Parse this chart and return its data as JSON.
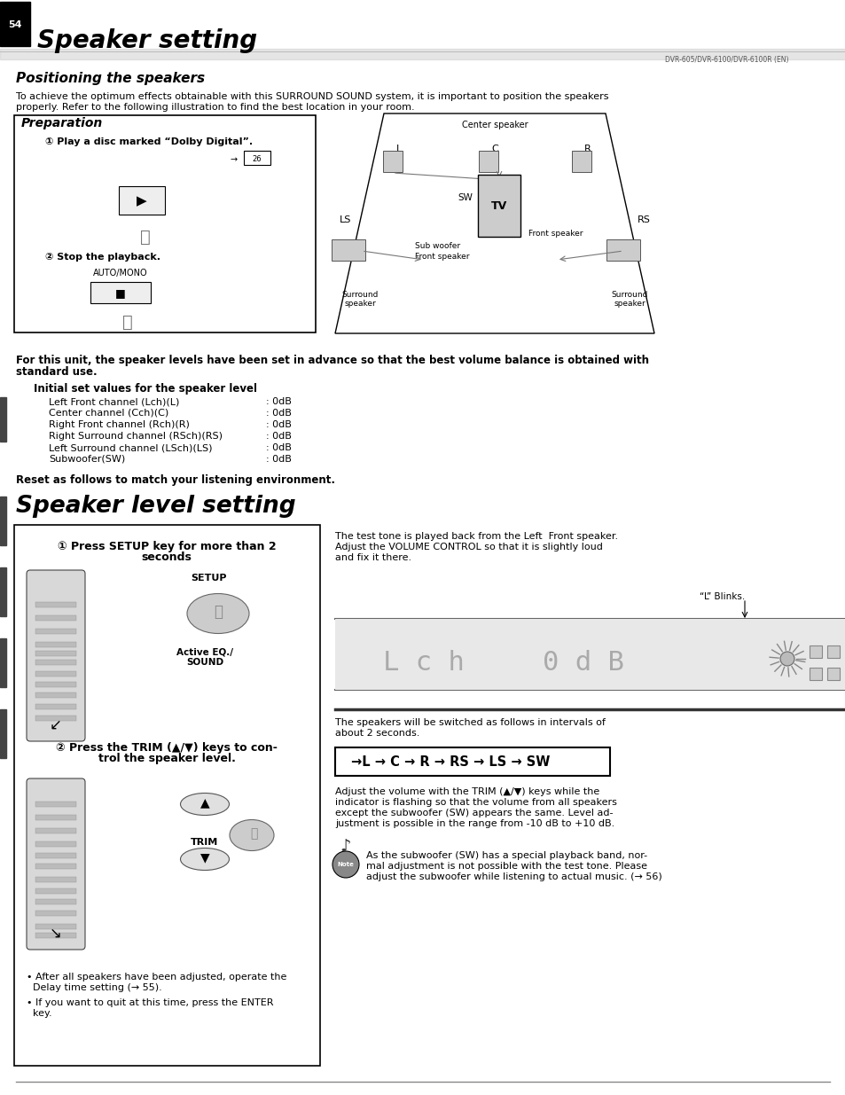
{
  "page_num": "54",
  "title": "Speaker setting",
  "header_right": "DVR-605/DVR-6100/DVR-6100R (EN)",
  "section1_title": "Positioning the speakers",
  "section1_body1": "To achieve the optimum effects obtainable with this SURROUND SOUND system, it is important to position the speakers",
  "section1_body2": "properly. Refer to the following illustration to find the best location in your room.",
  "prep_title": "Preparation",
  "prep_step1": "① Play a disc marked “Dolby Digital”.",
  "prep_step1_ref": "→ 26",
  "prep_step2": "② Stop the playback.",
  "prep_step2_label": "AUTO/MONO",
  "initial_text1": "For this unit, the speaker levels have been set in advance so that the best volume balance is obtained with",
  "initial_text2": "standard use.",
  "initial_subtitle": "Initial set values for the speaker level",
  "channels": [
    "Left Front channel (Lch)(L)",
    "Center channel (Cch)(C)",
    "Right Front channel (Rch)(R)",
    "Right Surround channel (RSch)(RS)",
    "Left Surround channel (LSch)(LS)",
    "Subwoofer(SW)"
  ],
  "channel_values": [
    ": 0dB",
    ": 0dB",
    ": 0dB",
    ": 0dB",
    ": 0dB",
    ": 0dB"
  ],
  "reset_text": "Reset as follows to match your listening environment.",
  "section2_title": "Speaker level setting",
  "box2_step1a": "① Press SETUP key for more than 2",
  "box2_step1b": "seconds",
  "setup_label": "SETUP",
  "active_label": "Active EQ./\nSOUND",
  "box2_step2a": "② Press the TRIM (▲/▼) keys to con-",
  "box2_step2b": "trol the speaker level.",
  "trim_label": "TRIM",
  "bullet1a": "• After all speakers have been adjusted, operate the",
  "bullet1b": "  Delay time setting (→ 55).",
  "bullet2a": "• If you want to quit at this time, press the ENTER",
  "bullet2b": "  key.",
  "right_text1a": "The test tone is played back from the Left  Front speaker.",
  "right_text1b": "Adjust the VOLUME CONTROL so that it is slightly loud",
  "right_text1c": "and fix it there.",
  "blinks_label": "“L” Blinks.",
  "switch_text1": "The speakers will be switched as follows in intervals of",
  "switch_text2": "about 2 seconds.",
  "arrow_sequence": "→L → C → R → RS → LS → SW",
  "right_text2a": "Adjust the volume with the TRIM (▲/▼) keys while the",
  "right_text2b": "indicator is flashing so that the volume from all speakers",
  "right_text2c": "except the subwoofer (SW) appears the same. Level ad-",
  "right_text2d": "justment is possible in the range from -10 dB to +10 dB.",
  "note_text1": "As the subwoofer (SW) has a special playback band, nor-",
  "note_text2": "mal adjustment is not possible with the test tone. Please",
  "note_text3": "adjust the subwoofer while listening to actual music. (→ 56)",
  "bg_color": "#ffffff"
}
